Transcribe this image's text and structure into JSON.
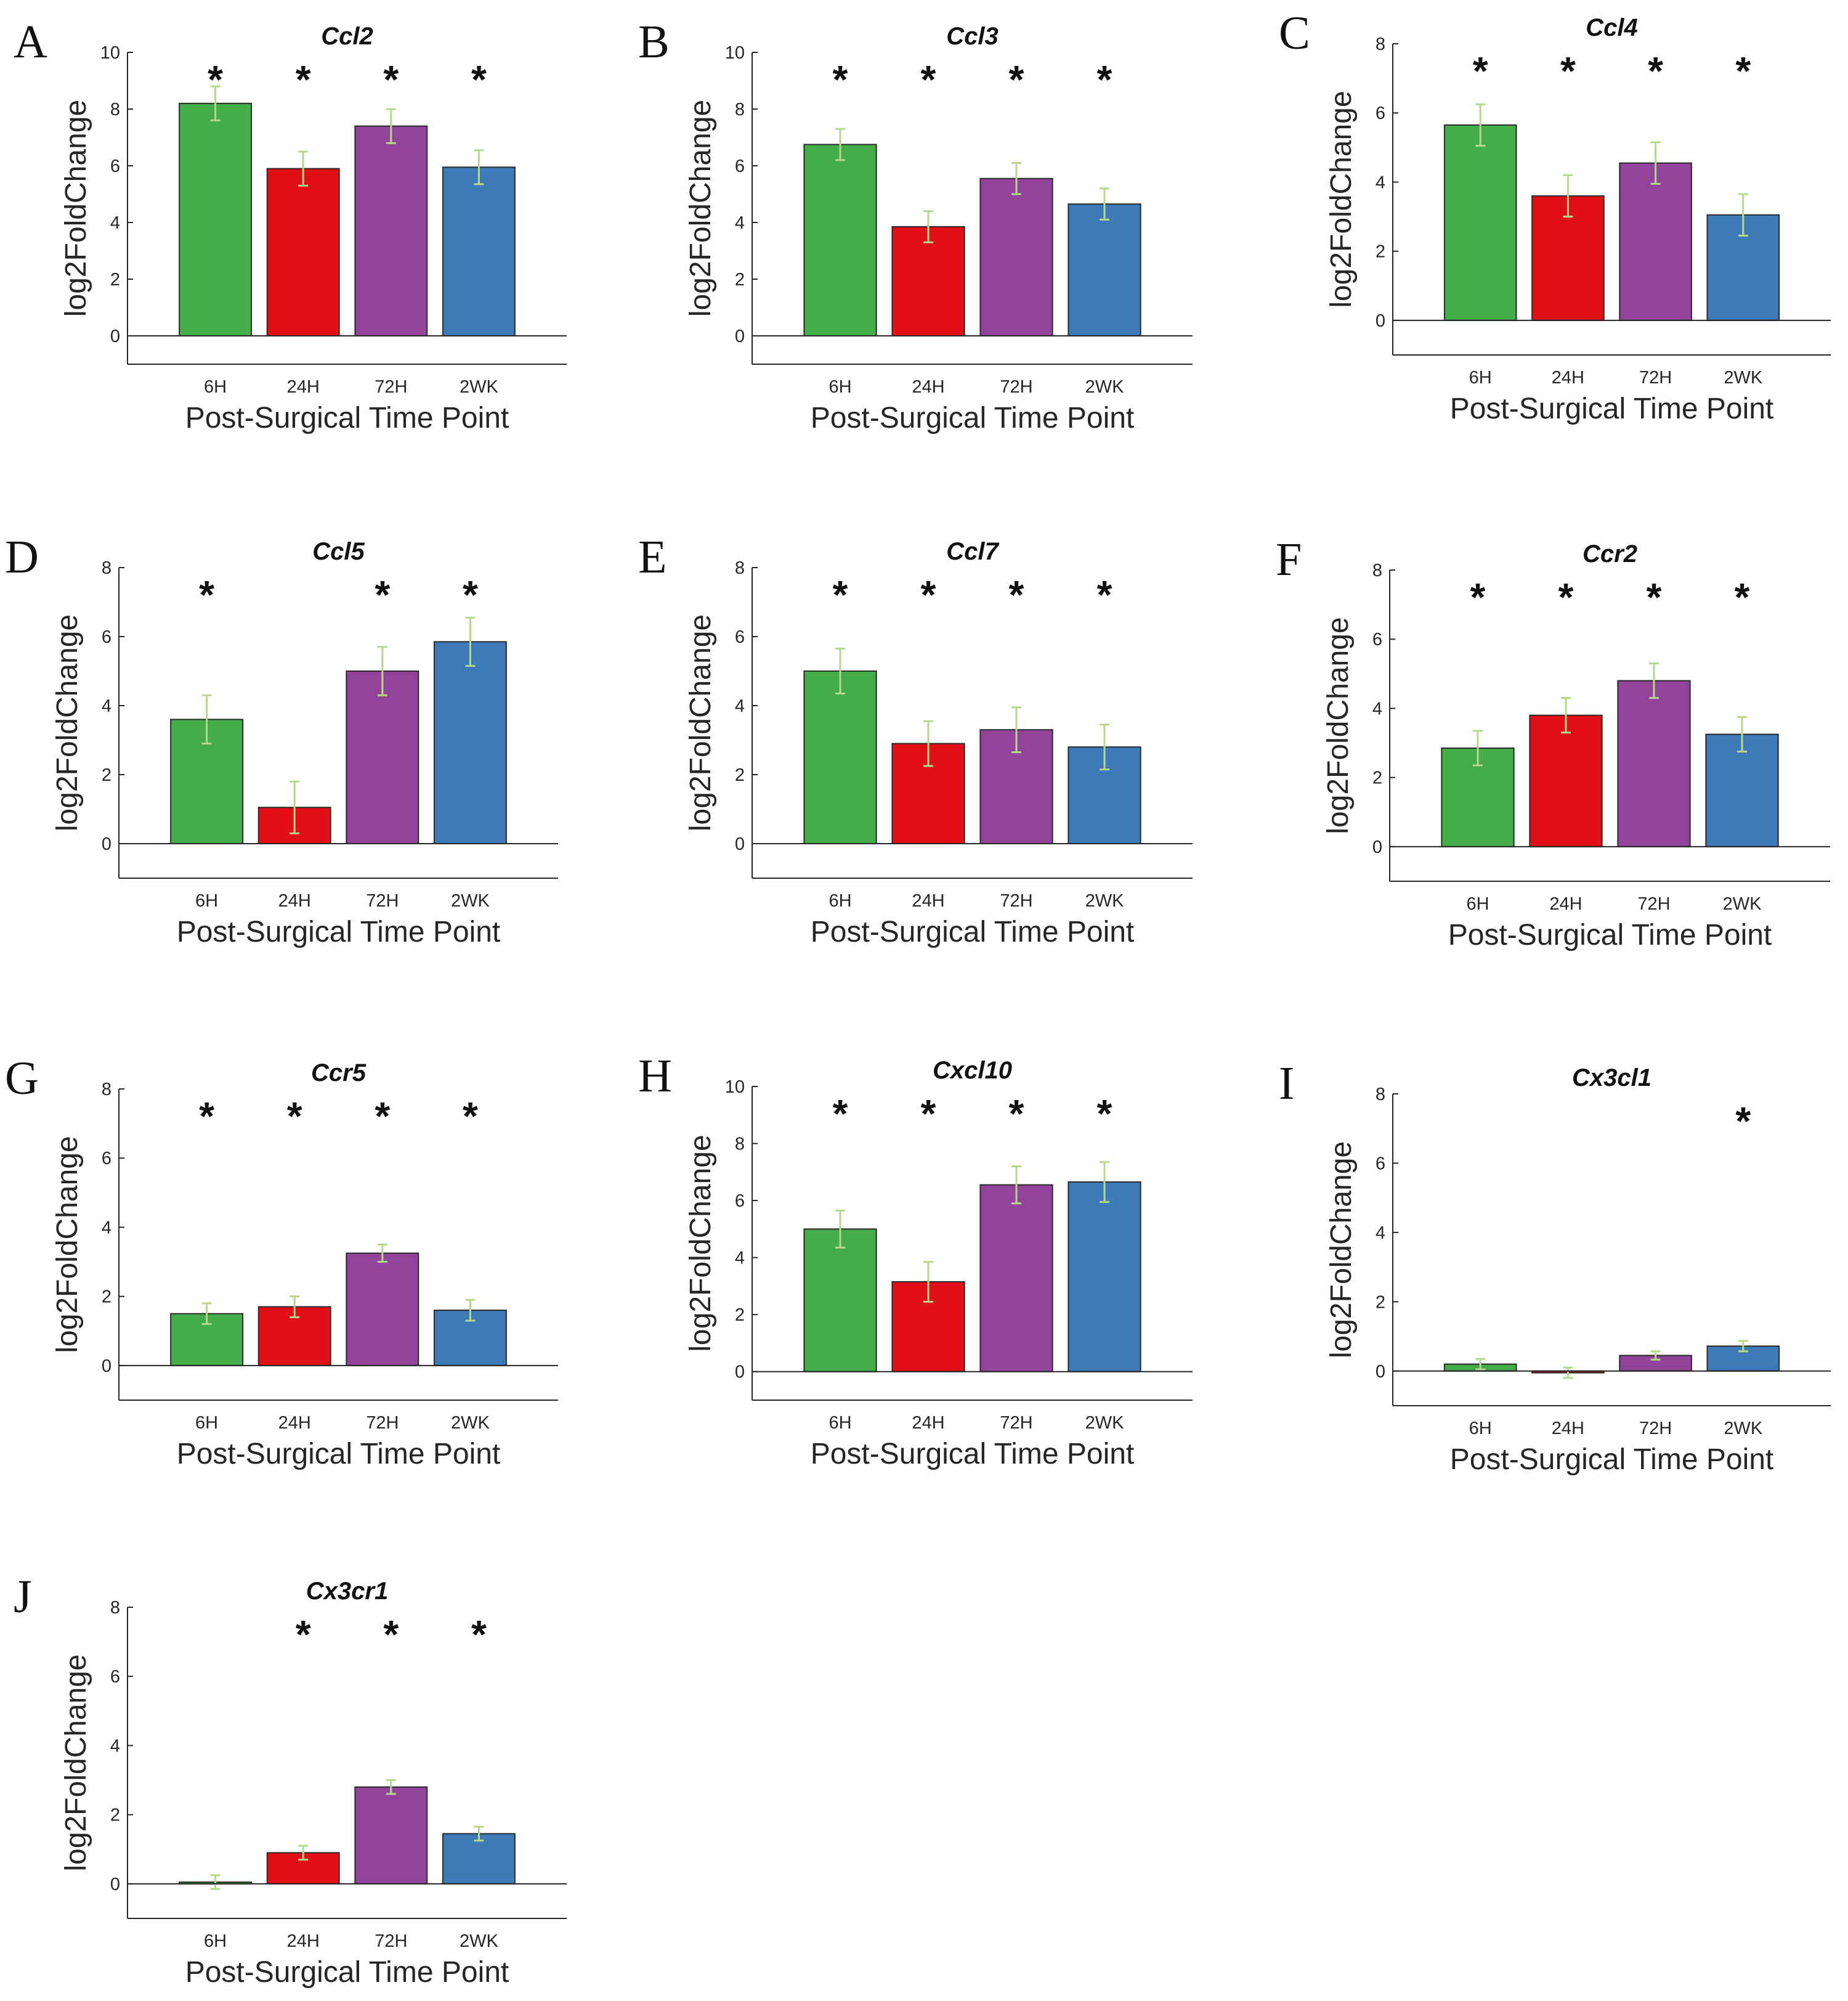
{
  "figure": {
    "colors": {
      "6H": "#44ad4a",
      "24H": "#e01016",
      "72H": "#91449a",
      "2WK": "#3e7ab8",
      "errorbar": "#b5d98a"
    }
  },
  "chart_data": [
    {
      "letter": "A",
      "type": "bar",
      "title": "Ccl2",
      "xlabel": "Post-Surgical Time Point",
      "ylabel": "log2FoldChange",
      "ylim": [
        -1,
        10
      ],
      "yticks": [
        0,
        2,
        4,
        6,
        8,
        10
      ],
      "categories": [
        "6H",
        "24H",
        "72H",
        "2WK"
      ],
      "values": [
        8.2,
        5.9,
        7.4,
        5.95
      ],
      "errors": [
        0.6,
        0.6,
        0.6,
        0.6
      ],
      "significant": [
        true,
        true,
        true,
        true
      ]
    },
    {
      "letter": "B",
      "type": "bar",
      "title": "Ccl3",
      "xlabel": "Post-Surgical Time Point",
      "ylabel": "log2FoldChange",
      "ylim": [
        -1,
        10
      ],
      "yticks": [
        0,
        2,
        4,
        6,
        8,
        10
      ],
      "categories": [
        "6H",
        "24H",
        "72H",
        "2WK"
      ],
      "values": [
        6.75,
        3.85,
        5.55,
        4.65
      ],
      "errors": [
        0.55,
        0.55,
        0.55,
        0.55
      ],
      "significant": [
        true,
        true,
        true,
        true
      ]
    },
    {
      "letter": "C",
      "type": "bar",
      "title": "Ccl4",
      "xlabel": "Post-Surgical Time Point",
      "ylabel": "log2FoldChange",
      "ylim": [
        -1,
        8
      ],
      "yticks": [
        0,
        2,
        4,
        6,
        8
      ],
      "categories": [
        "6H",
        "24H",
        "72H",
        "2WK"
      ],
      "values": [
        5.65,
        3.6,
        4.55,
        3.05
      ],
      "errors": [
        0.6,
        0.6,
        0.6,
        0.6
      ],
      "significant": [
        true,
        true,
        true,
        true
      ]
    },
    {
      "letter": "D",
      "type": "bar",
      "title": "Ccl5",
      "xlabel": "Post-Surgical Time Point",
      "ylabel": "log2FoldChange",
      "ylim": [
        -1,
        8
      ],
      "yticks": [
        0,
        2,
        4,
        6,
        8
      ],
      "categories": [
        "6H",
        "24H",
        "72H",
        "2WK"
      ],
      "values": [
        3.6,
        1.05,
        5.0,
        5.85
      ],
      "errors": [
        0.7,
        0.75,
        0.7,
        0.7
      ],
      "significant": [
        true,
        false,
        true,
        true
      ]
    },
    {
      "letter": "E",
      "type": "bar",
      "title": "Ccl7",
      "xlabel": "Post-Surgical Time Point",
      "ylabel": "log2FoldChange",
      "ylim": [
        -1,
        8
      ],
      "yticks": [
        0,
        2,
        4,
        6,
        8
      ],
      "categories": [
        "6H",
        "24H",
        "72H",
        "2WK"
      ],
      "values": [
        5.0,
        2.9,
        3.3,
        2.8
      ],
      "errors": [
        0.65,
        0.65,
        0.65,
        0.65
      ],
      "significant": [
        true,
        true,
        true,
        true
      ]
    },
    {
      "letter": "F",
      "type": "bar",
      "title": "Ccr2",
      "xlabel": "Post-Surgical Time Point",
      "ylabel": "log2FoldChange",
      "ylim": [
        -1,
        8
      ],
      "yticks": [
        0,
        2,
        4,
        6,
        8
      ],
      "categories": [
        "6H",
        "24H",
        "72H",
        "2WK"
      ],
      "values": [
        2.85,
        3.8,
        4.8,
        3.25
      ],
      "errors": [
        0.5,
        0.5,
        0.5,
        0.5
      ],
      "significant": [
        true,
        true,
        true,
        true
      ]
    },
    {
      "letter": "G",
      "type": "bar",
      "title": "Ccr5",
      "xlabel": "Post-Surgical Time Point",
      "ylabel": "log2FoldChange",
      "ylim": [
        -1,
        8
      ],
      "yticks": [
        0,
        2,
        4,
        6,
        8
      ],
      "categories": [
        "6H",
        "24H",
        "72H",
        "2WK"
      ],
      "values": [
        1.5,
        1.7,
        3.25,
        1.6
      ],
      "errors": [
        0.3,
        0.3,
        0.25,
        0.3
      ],
      "significant": [
        true,
        true,
        true,
        true
      ]
    },
    {
      "letter": "H",
      "type": "bar",
      "title": "Cxcl10",
      "xlabel": "Post-Surgical Time Point",
      "ylabel": "log2FoldChange",
      "ylim": [
        -1,
        10
      ],
      "yticks": [
        0,
        2,
        4,
        6,
        8,
        10
      ],
      "categories": [
        "6H",
        "24H",
        "72H",
        "2WK"
      ],
      "values": [
        5.0,
        3.15,
        6.55,
        6.65
      ],
      "errors": [
        0.65,
        0.7,
        0.65,
        0.7
      ],
      "significant": [
        true,
        true,
        true,
        true
      ]
    },
    {
      "letter": "I",
      "type": "bar",
      "title": "Cx3cl1",
      "xlabel": "Post-Surgical Time Point",
      "ylabel": "log2FoldChange",
      "ylim": [
        -1,
        8
      ],
      "yticks": [
        0,
        2,
        4,
        6,
        8
      ],
      "categories": [
        "6H",
        "24H",
        "72H",
        "2WK"
      ],
      "values": [
        0.2,
        -0.05,
        0.45,
        0.72
      ],
      "errors": [
        0.15,
        0.15,
        0.12,
        0.15
      ],
      "significant": [
        false,
        false,
        false,
        true
      ]
    },
    {
      "letter": "J",
      "type": "bar",
      "title": "Cx3cr1",
      "xlabel": "Post-Surgical Time Point",
      "ylabel": "log2FoldChange",
      "ylim": [
        -1,
        8
      ],
      "yticks": [
        0,
        2,
        4,
        6,
        8
      ],
      "categories": [
        "6H",
        "24H",
        "72H",
        "2WK"
      ],
      "values": [
        0.05,
        0.9,
        2.8,
        1.45
      ],
      "errors": [
        0.2,
        0.2,
        0.2,
        0.2
      ],
      "significant": [
        false,
        true,
        true,
        true
      ]
    }
  ]
}
